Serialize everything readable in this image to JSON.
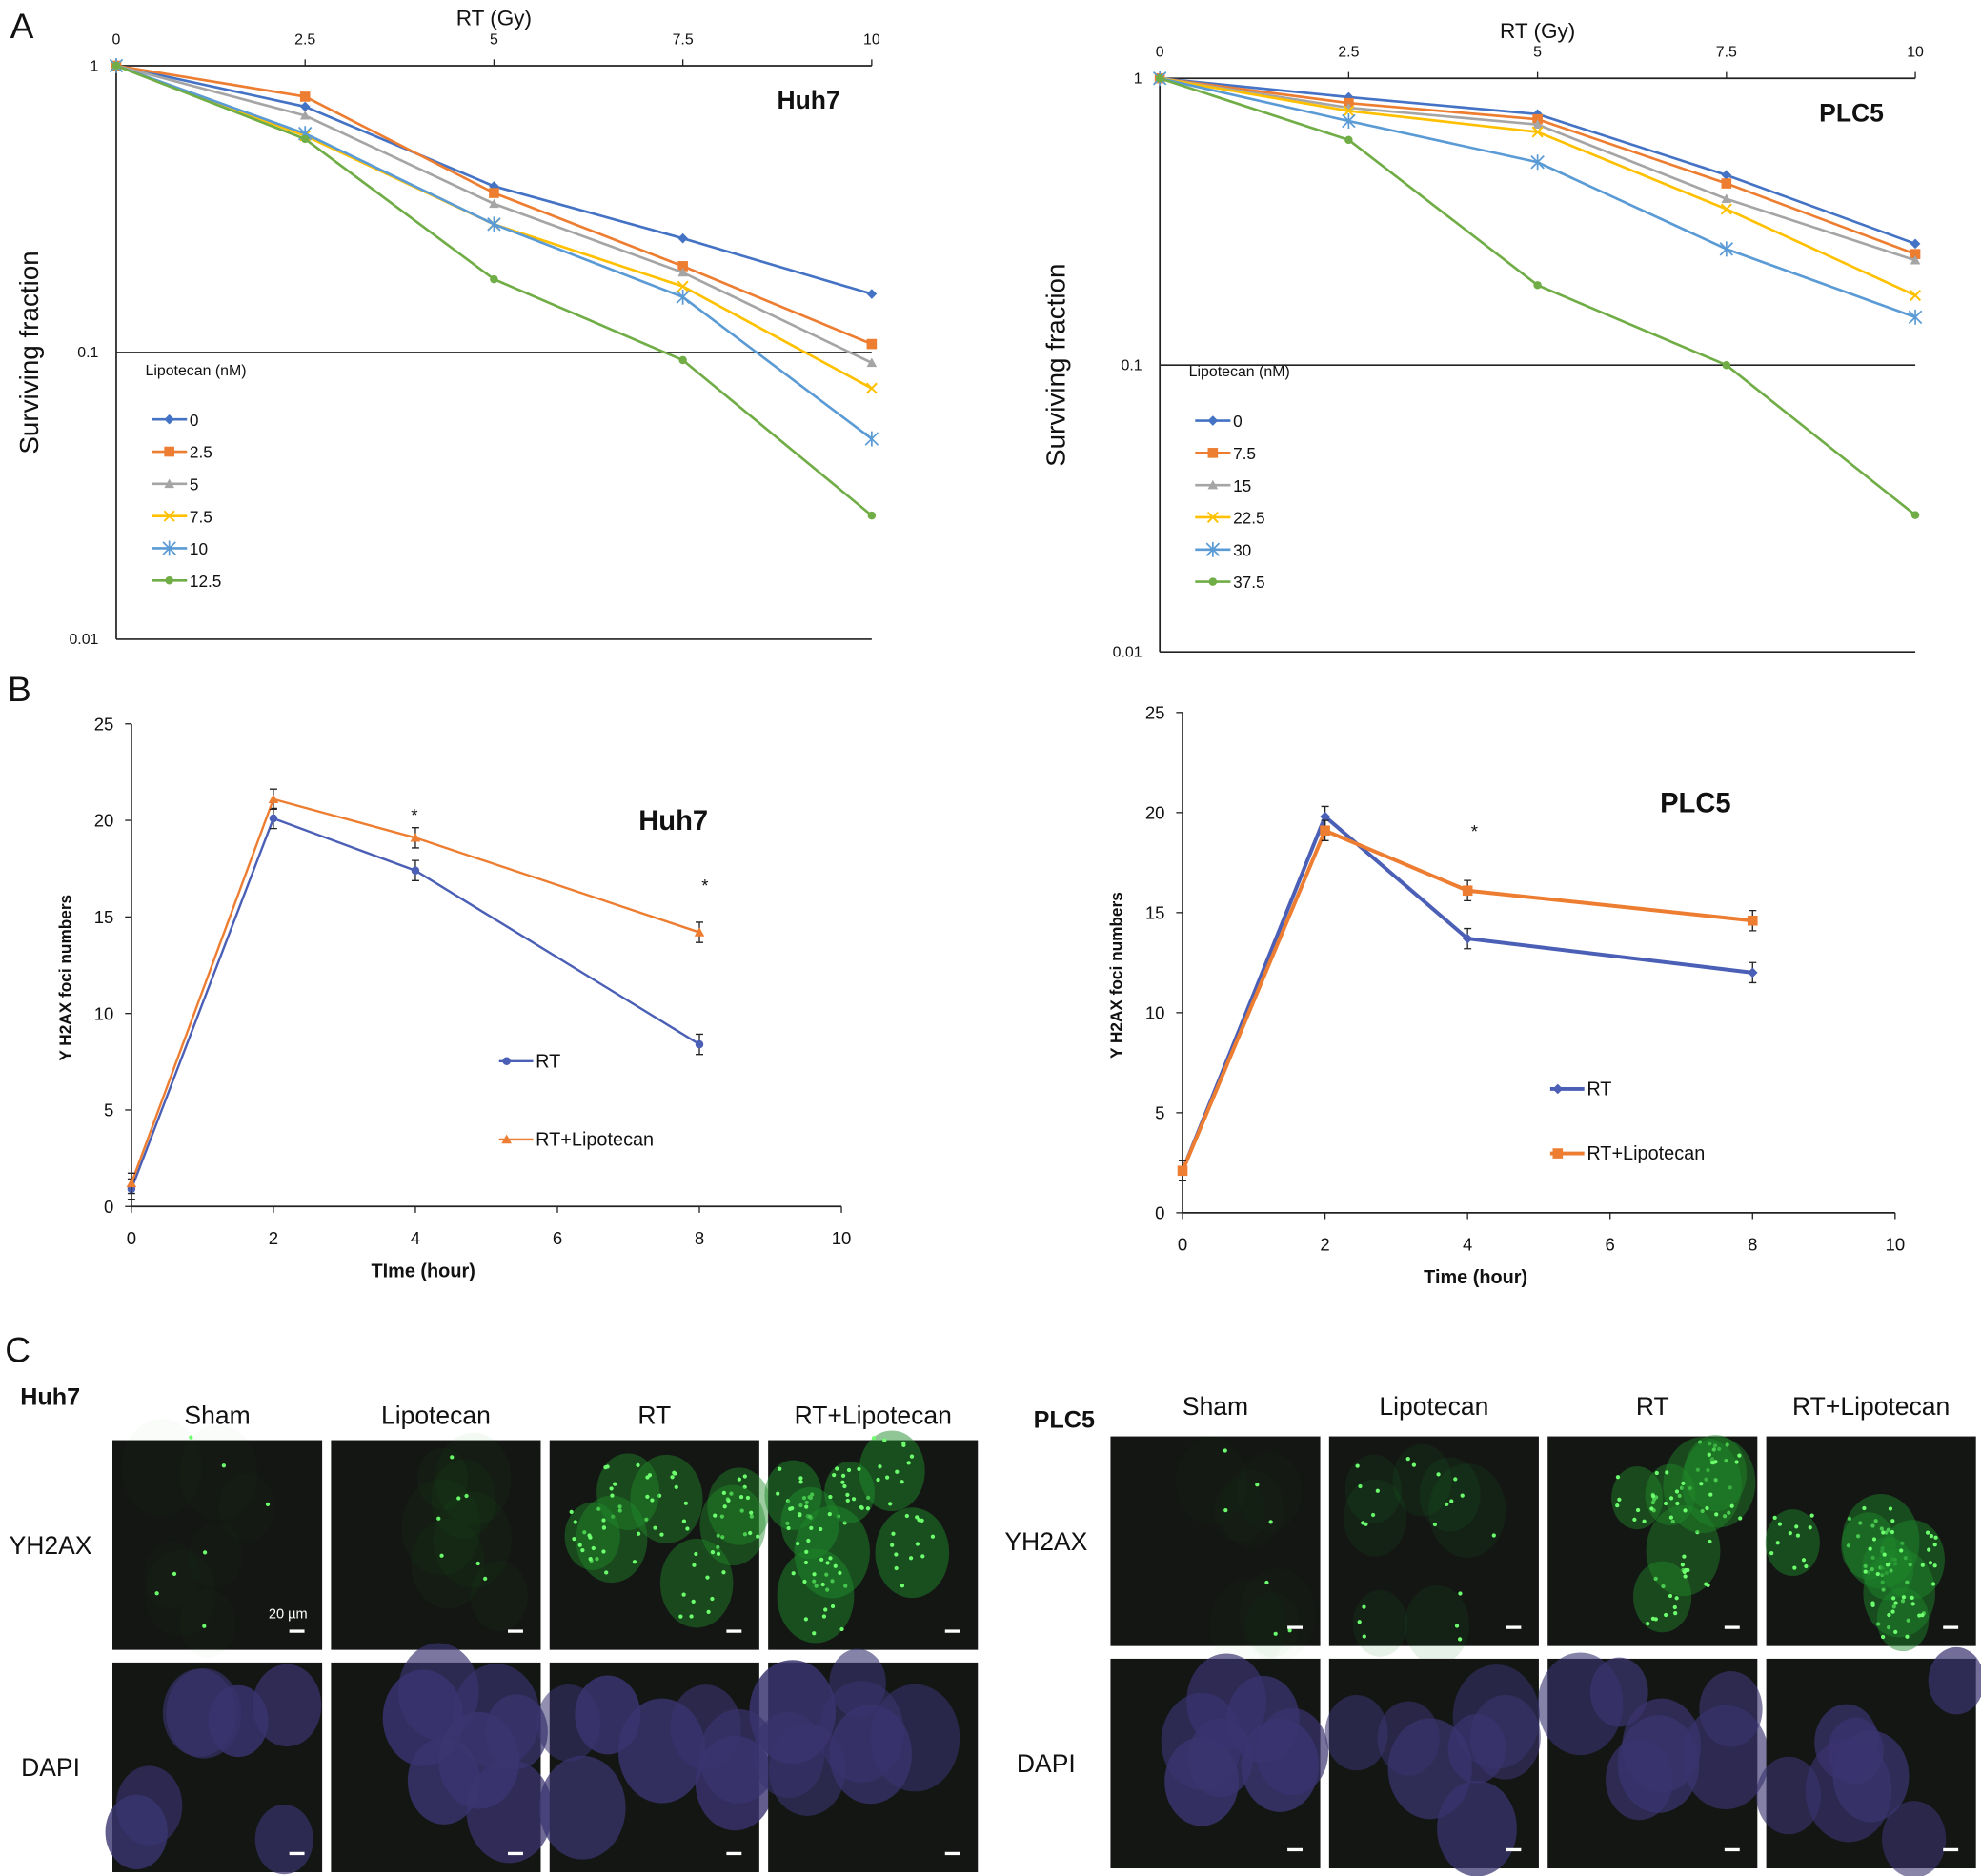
{
  "panel_labels": {
    "a": "A",
    "b": "B",
    "c": "C"
  },
  "chart_data": [
    {
      "id": "a-huh7",
      "type": "line",
      "cell_line": "Huh7",
      "xlabel": "RT (Gy)",
      "ylabel": "Surviving fraction",
      "x": [
        0,
        2.5,
        5,
        7.5,
        10
      ],
      "x_ticks": [
        "0",
        "2.5",
        "5",
        "7.5",
        "10"
      ],
      "y_scale": "log",
      "ylim": [
        0.01,
        1
      ],
      "y_ticks": [
        "1",
        "0.1",
        "0.01"
      ],
      "legend_title": "Lipotecan (nM)",
      "legend_position": "left",
      "series": [
        {
          "name": "0",
          "color": "#4472c4",
          "marker": "diamond",
          "values": [
            1,
            0.72,
            0.38,
            0.25,
            0.16
          ]
        },
        {
          "name": "2.5",
          "color": "#ed7d31",
          "marker": "square",
          "values": [
            1,
            0.78,
            0.36,
            0.2,
            0.107
          ]
        },
        {
          "name": "5",
          "color": "#a5a5a5",
          "marker": "triangle",
          "values": [
            1,
            0.67,
            0.33,
            0.19,
            0.092
          ]
        },
        {
          "name": "7.5",
          "color": "#ffc000",
          "marker": "x",
          "values": [
            1,
            0.57,
            0.28,
            0.17,
            0.075
          ]
        },
        {
          "name": "10",
          "color": "#5b9bd5",
          "marker": "star",
          "values": [
            1,
            0.58,
            0.28,
            0.156,
            0.05
          ]
        },
        {
          "name": "12.5",
          "color": "#70ad47",
          "marker": "circle",
          "values": [
            1,
            0.555,
            0.18,
            0.094,
            0.027
          ]
        }
      ]
    },
    {
      "id": "a-plc5",
      "type": "line",
      "cell_line": "PLC5",
      "xlabel": "RT (Gy)",
      "ylabel": "Surviving fraction",
      "x": [
        0,
        2.5,
        5,
        7.5,
        10
      ],
      "x_ticks": [
        "0",
        "2.5",
        "5",
        "7.5",
        "10"
      ],
      "y_scale": "log",
      "ylim": [
        0.01,
        1
      ],
      "y_ticks": [
        "1",
        "0.1",
        "0.01"
      ],
      "legend_title": "Lipotecan (nM)",
      "legend_position": "left",
      "series": [
        {
          "name": "0",
          "color": "#4472c4",
          "marker": "diamond",
          "values": [
            1,
            0.86,
            0.75,
            0.46,
            0.265
          ]
        },
        {
          "name": "7.5",
          "color": "#ed7d31",
          "marker": "square",
          "values": [
            1,
            0.82,
            0.72,
            0.43,
            0.244
          ]
        },
        {
          "name": "15",
          "color": "#a5a5a5",
          "marker": "triangle",
          "values": [
            1,
            0.79,
            0.69,
            0.38,
            0.232
          ]
        },
        {
          "name": "22.5",
          "color": "#ffc000",
          "marker": "x",
          "values": [
            1,
            0.77,
            0.65,
            0.35,
            0.175
          ]
        },
        {
          "name": "30",
          "color": "#5b9bd5",
          "marker": "star",
          "values": [
            1,
            0.71,
            0.51,
            0.254,
            0.147
          ]
        },
        {
          "name": "37.5",
          "color": "#70ad47",
          "marker": "circle",
          "values": [
            1,
            0.61,
            0.19,
            0.1,
            0.03
          ]
        }
      ]
    },
    {
      "id": "b-huh7",
      "type": "line",
      "cell_line": "Huh7",
      "xlabel": "TIme (hour)",
      "ylabel": "Y H2AX foci numbers",
      "x": [
        0,
        2,
        4,
        8
      ],
      "x_ticks": [
        "0",
        "2",
        "4",
        "6",
        "8",
        "10"
      ],
      "xlim": [
        0,
        10
      ],
      "ylim": [
        0,
        25
      ],
      "y_ticks": [
        "0",
        "5",
        "10",
        "15",
        "20",
        "25"
      ],
      "annotations": [
        "*",
        "*"
      ],
      "series": [
        {
          "name": "RT",
          "color": "#4a5fb5",
          "marker": "circle",
          "values": [
            0.9,
            20.1,
            17.4,
            8.4
          ]
        },
        {
          "name": "RT+Lipotecan",
          "color": "#ed7d31",
          "marker": "triangle",
          "values": [
            1.2,
            21.1,
            19.1,
            14.2
          ]
        }
      ]
    },
    {
      "id": "b-plc5",
      "type": "line",
      "cell_line": "PLC5",
      "xlabel": "Time (hour)",
      "ylabel": "Y H2AX foci numbers",
      "x": [
        0,
        2,
        4,
        8
      ],
      "x_ticks": [
        "0",
        "2",
        "4",
        "6",
        "8",
        "10"
      ],
      "xlim": [
        0,
        10
      ],
      "ylim": [
        0,
        25
      ],
      "y_ticks": [
        "0",
        "5",
        "10",
        "15",
        "20",
        "25"
      ],
      "annotations": [
        "*"
      ],
      "series": [
        {
          "name": "RT",
          "color": "#4a5fb5",
          "marker": "diamond",
          "values": [
            2.1,
            19.8,
            13.7,
            12.0
          ]
        },
        {
          "name": "RT+Lipotecan",
          "color": "#ed7d31",
          "marker": "square",
          "values": [
            2.1,
            19.1,
            16.1,
            14.6
          ]
        }
      ]
    }
  ],
  "panel_c": {
    "groups": [
      {
        "cell_line": "Huh7",
        "columns": [
          "Sham",
          "Lipotecan",
          "RT",
          "RT+Lipotecan"
        ],
        "rows": [
          "YH2AX",
          "DAPI"
        ],
        "scale_bar": "20 µm"
      },
      {
        "cell_line": "PLC5",
        "columns": [
          "Sham",
          "Lipotecan",
          "RT",
          "RT+Lipotecan"
        ],
        "rows": [
          "YH2AX",
          "DAPI"
        ]
      }
    ],
    "foci_level": [
      [
        0.05,
        0.1,
        0.8,
        0.9
      ],
      [
        0.05,
        0.2,
        0.8,
        0.85
      ]
    ]
  }
}
